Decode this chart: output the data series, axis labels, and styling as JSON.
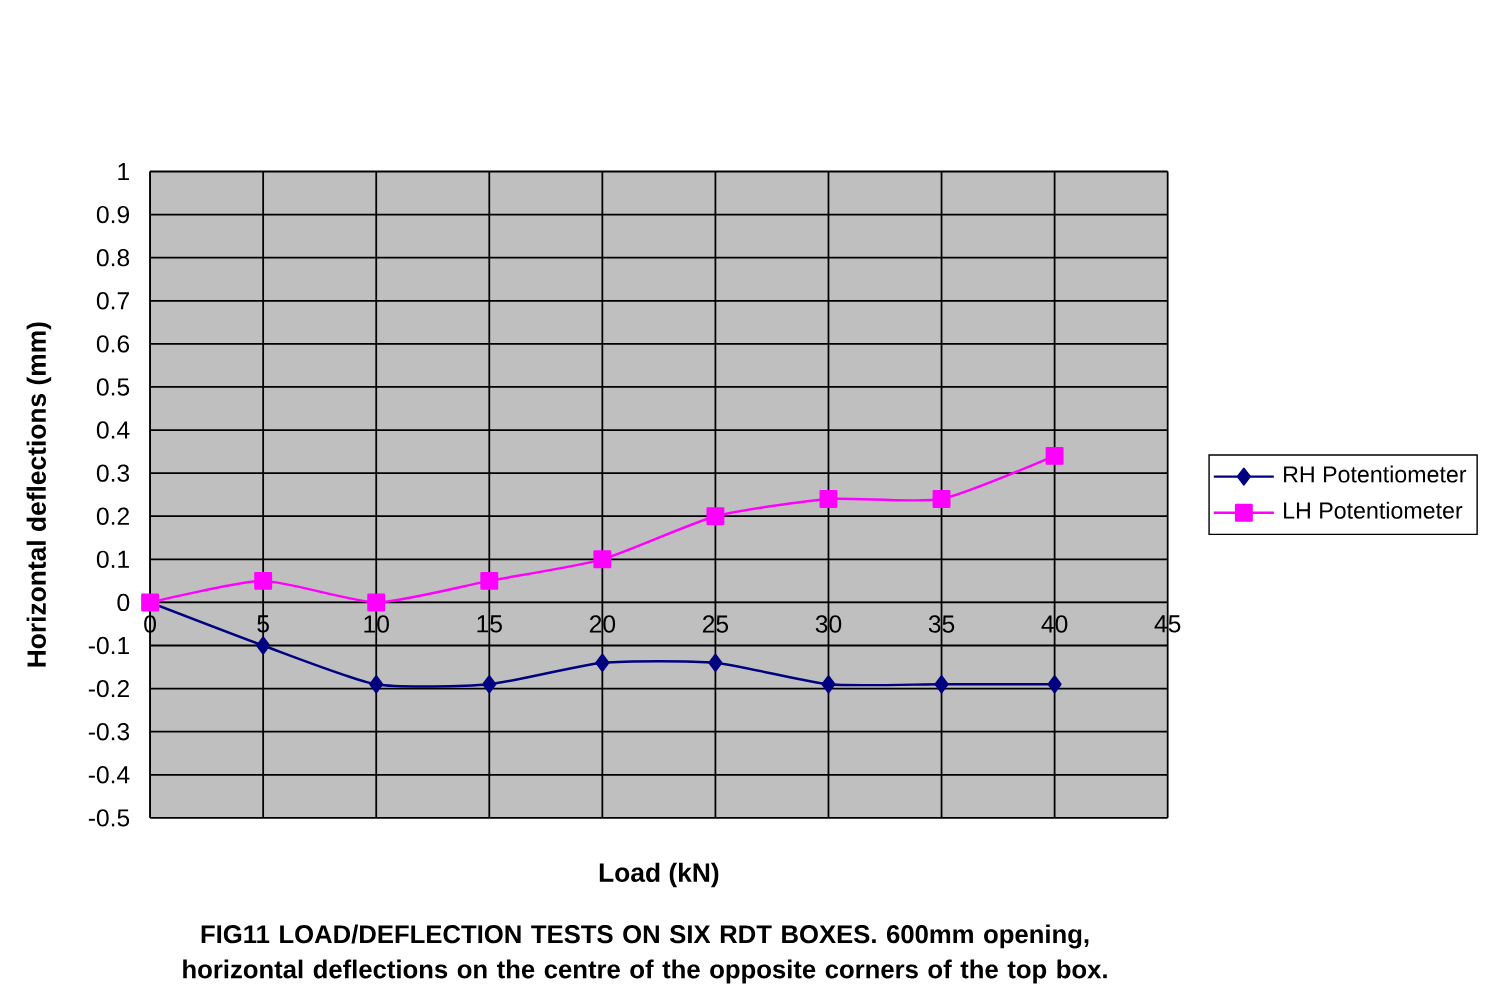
{
  "chart_data": {
    "type": "line",
    "title": "FIG11 LOAD/DEFLECTION TESTS ON SIX RDT BOXES. 600mm opening, horizontal deflections on the centre of the opposite corners of the top box.",
    "xlabel": "Load (kN)",
    "ylabel": "Horizontal deflections (mm)",
    "x": [
      0,
      5,
      10,
      15,
      20,
      25,
      30,
      35,
      40
    ],
    "series": [
      {
        "name": "RH Potentiometer",
        "color": "#000080",
        "marker": "diamond",
        "values": [
          0,
          -0.1,
          -0.19,
          -0.19,
          -0.14,
          -0.14,
          -0.19,
          -0.19,
          -0.19
        ]
      },
      {
        "name": "LH Potentiometer",
        "color": "#ff00ff",
        "marker": "square",
        "values": [
          0,
          0.05,
          0,
          0.05,
          0.1,
          0.2,
          0.24,
          0.24,
          0.34
        ]
      }
    ],
    "xlim": [
      0,
      45
    ],
    "ylim": [
      -0.5,
      1
    ],
    "xticks": [
      0,
      5,
      10,
      15,
      20,
      25,
      30,
      35,
      40,
      45
    ],
    "yticks": [
      -0.5,
      -0.4,
      -0.3,
      -0.2,
      -0.1,
      0,
      0.1,
      0.2,
      0.3,
      0.4,
      0.5,
      0.6,
      0.7,
      0.8,
      0.9,
      1
    ],
    "grid": true,
    "legend": "right",
    "line_style": "solid"
  }
}
